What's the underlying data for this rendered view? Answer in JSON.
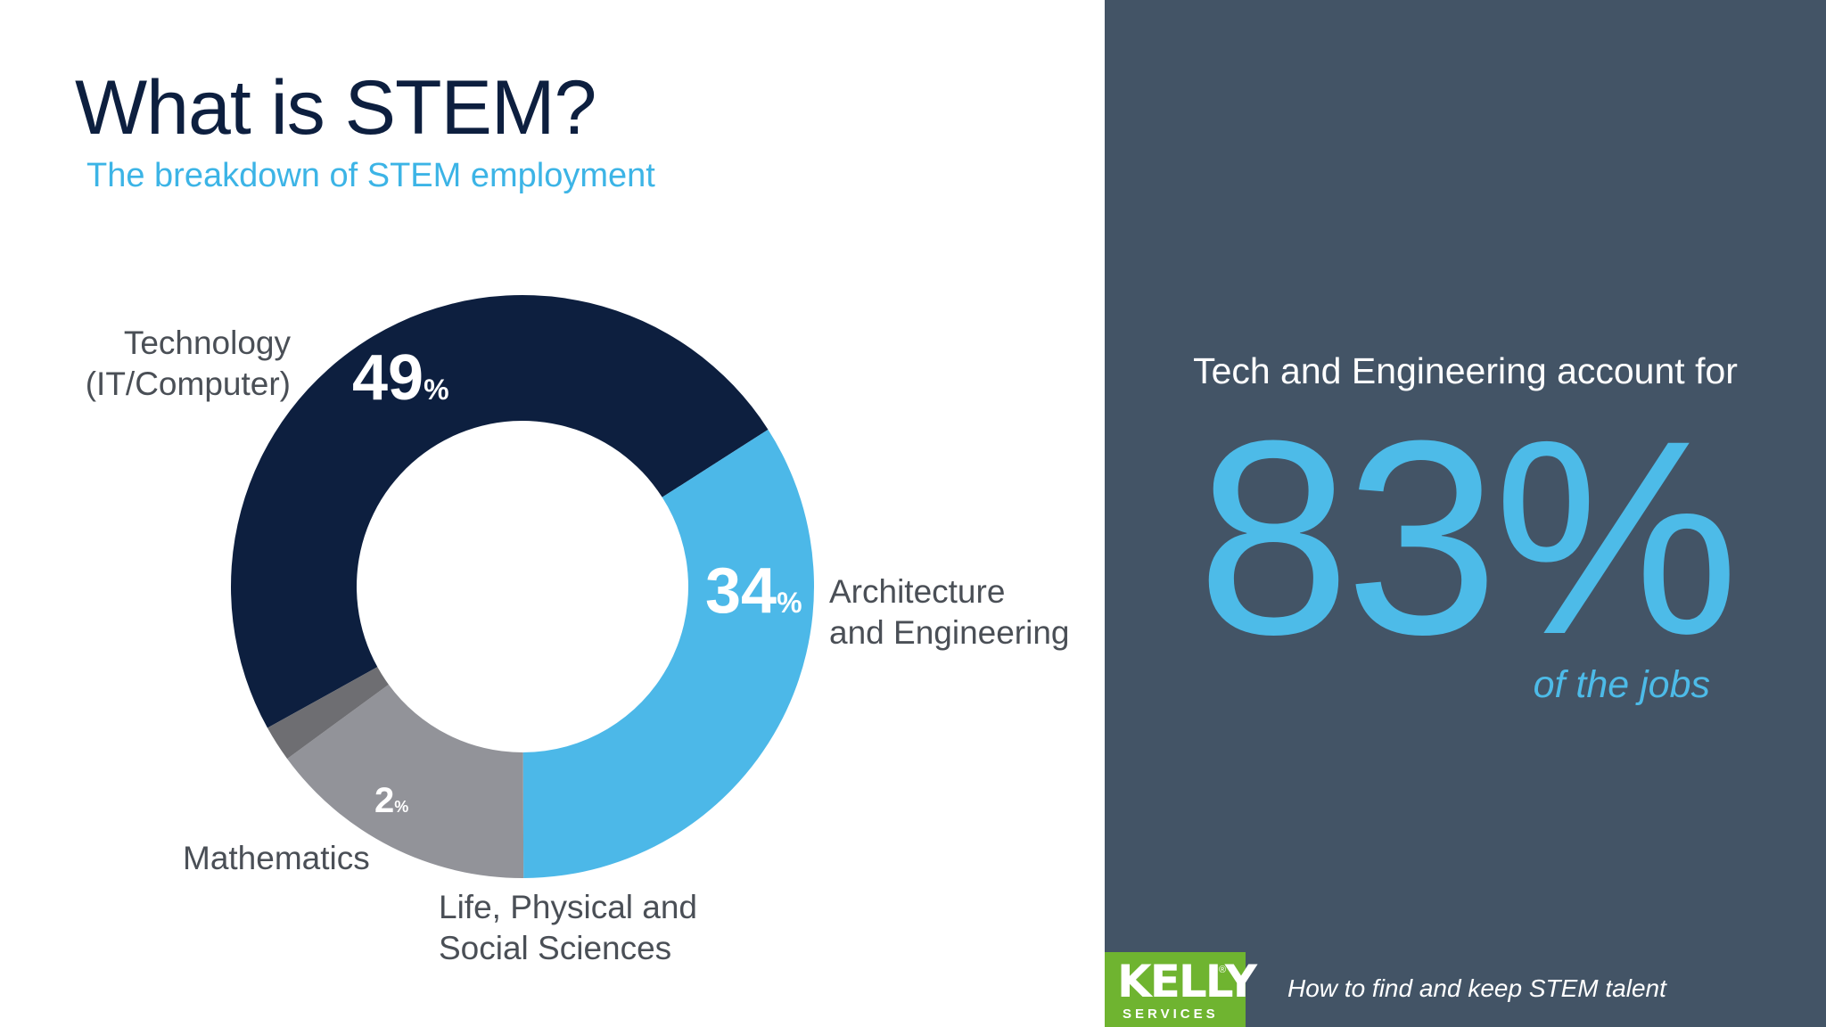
{
  "slide": {
    "title": "What is STEM?",
    "subtitle": "The breakdown of STEM employment"
  },
  "chart_data": {
    "type": "pie",
    "donut": true,
    "title": "What is STEM?",
    "subtitle": "The breakdown of STEM employment",
    "unit": "%",
    "slices": [
      {
        "label": "Technology (IT/Computer)",
        "label_lines": [
          "Technology",
          "(IT/Computer)"
        ],
        "value": 49,
        "value_text": "49",
        "color": "#0d1f3f"
      },
      {
        "label": "Architecture and Engineering",
        "label_lines": [
          "Architecture",
          "and Engineering"
        ],
        "value": 34,
        "value_text": "34",
        "color": "#4cb8e8"
      },
      {
        "label": "Life, Physical and Social Sciences",
        "label_lines": [
          "Life, Physical and",
          "Social Sciences"
        ],
        "value": 15,
        "value_text": "",
        "color": "#929399"
      },
      {
        "label": "Mathematics",
        "label_lines": [
          "Mathematics"
        ],
        "value": 2,
        "value_text": "2",
        "color": "#6e6e72"
      }
    ]
  },
  "callout": {
    "lead": "Tech and Engineering account for",
    "value": "83%",
    "tail": "of the jobs"
  },
  "logo": {
    "name": "KELLY",
    "mark": "®",
    "tagline": "SERVICES"
  },
  "footer": {
    "text": "How to find and keep STEM talent"
  },
  "colors": {
    "navy": "#0d1f3f",
    "sky": "#4cb8e8",
    "panel": "#435466",
    "gray": "#929399",
    "logo_green": "#6fb430"
  }
}
